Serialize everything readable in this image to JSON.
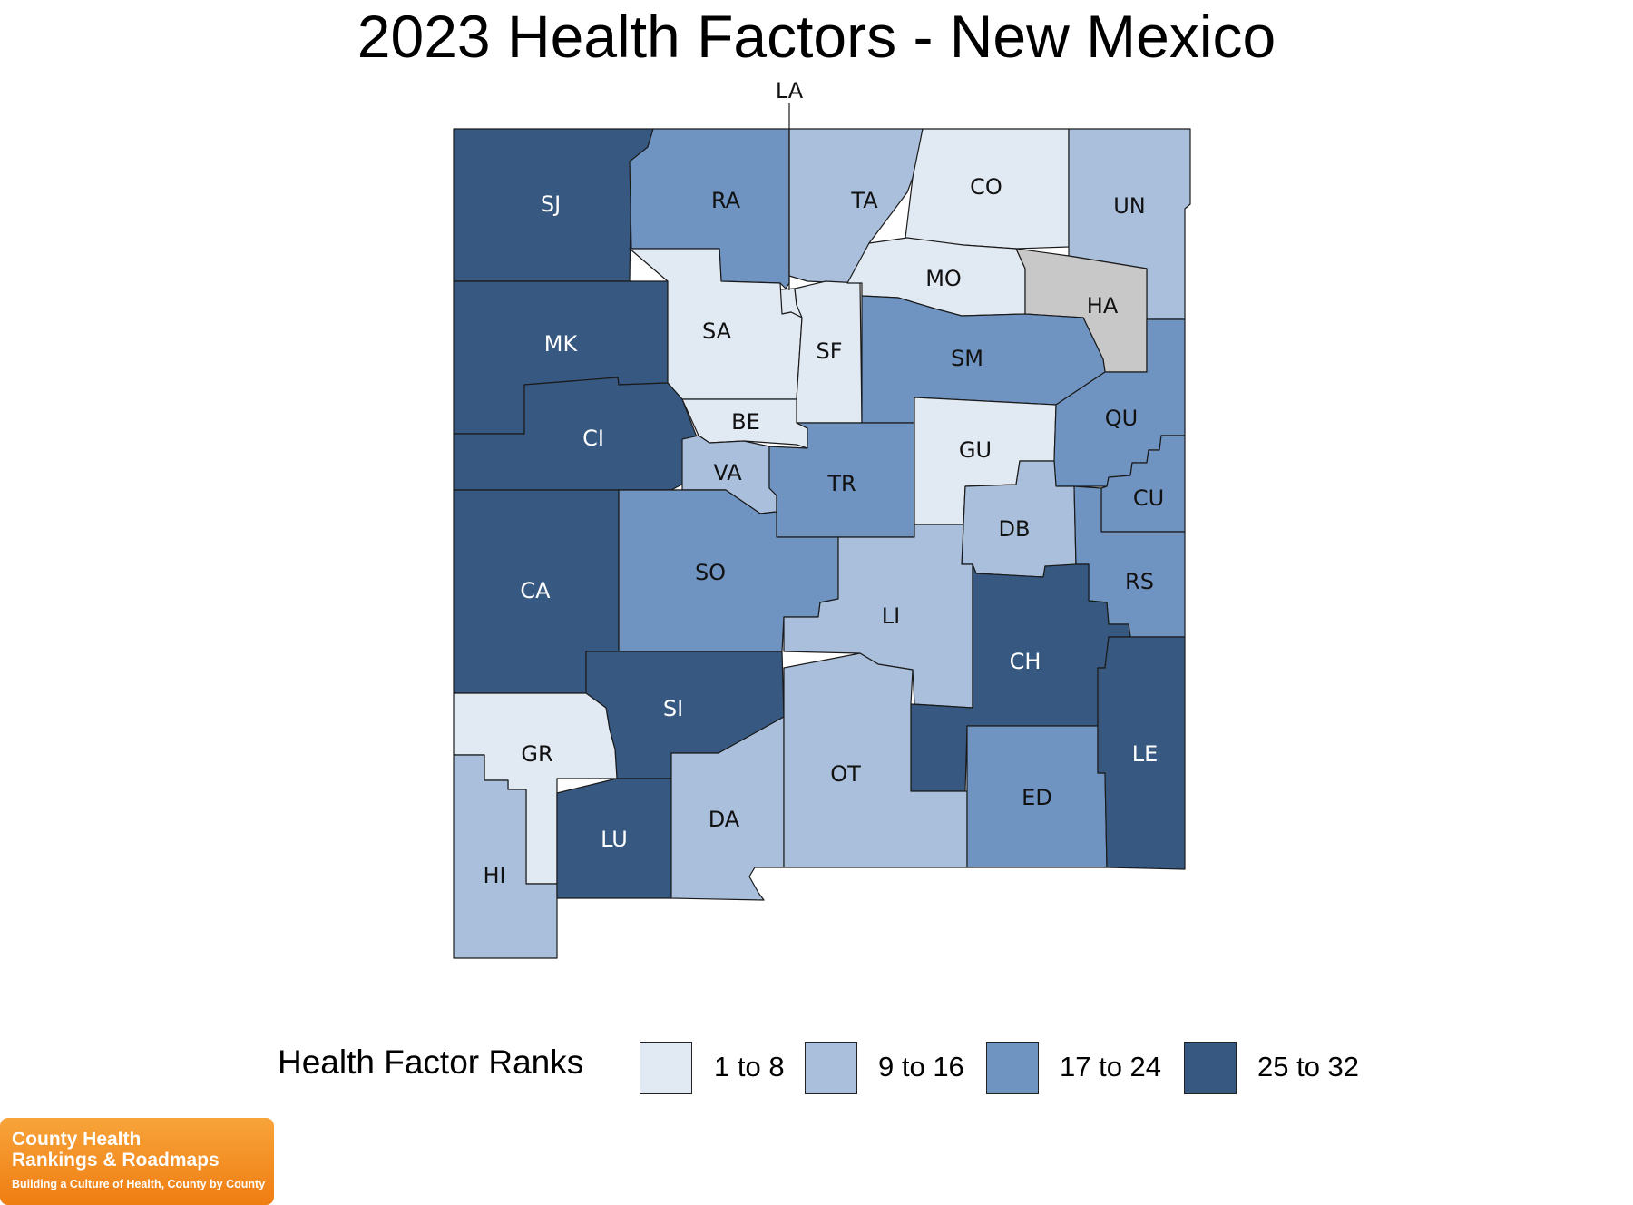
{
  "title": "2023 Health Factors - New Mexico",
  "colors": {
    "1 to 8": "#e1e9f3",
    "9 to 16": "#a9bfdc",
    "17 to 24": "#7094c2",
    "25 to 32": "#375880",
    "no_data": "#c8c8c8"
  },
  "legend": {
    "title": "Health Factor Ranks",
    "items": [
      {
        "label": "1 to 8",
        "range": [
          1,
          8
        ],
        "color": "#e1e9f3"
      },
      {
        "label": "9 to 16",
        "range": [
          9,
          16
        ],
        "color": "#a9bfdc"
      },
      {
        "label": "17 to 24",
        "range": [
          17,
          24
        ],
        "color": "#7094c2"
      },
      {
        "label": "25 to 32",
        "range": [
          25,
          32
        ],
        "color": "#375880"
      }
    ]
  },
  "counties": [
    {
      "abbr": "SJ",
      "rank_range": "25 to 32"
    },
    {
      "abbr": "RA",
      "rank_range": "17 to 24"
    },
    {
      "abbr": "LA",
      "rank_range": "1 to 8"
    },
    {
      "abbr": "TA",
      "rank_range": "9 to 16"
    },
    {
      "abbr": "CO",
      "rank_range": "1 to 8"
    },
    {
      "abbr": "UN",
      "rank_range": "9 to 16"
    },
    {
      "abbr": "MK",
      "rank_range": "25 to 32"
    },
    {
      "abbr": "SA",
      "rank_range": "1 to 8"
    },
    {
      "abbr": "SF",
      "rank_range": "1 to 8"
    },
    {
      "abbr": "MO",
      "rank_range": "1 to 8"
    },
    {
      "abbr": "HA",
      "rank_range": "no data"
    },
    {
      "abbr": "SM",
      "rank_range": "17 to 24"
    },
    {
      "abbr": "CI",
      "rank_range": "25 to 32"
    },
    {
      "abbr": "BE",
      "rank_range": "1 to 8"
    },
    {
      "abbr": "VA",
      "rank_range": "9 to 16"
    },
    {
      "abbr": "TR",
      "rank_range": "17 to 24"
    },
    {
      "abbr": "GU",
      "rank_range": "1 to 8"
    },
    {
      "abbr": "QU",
      "rank_range": "17 to 24"
    },
    {
      "abbr": "CU",
      "rank_range": "17 to 24"
    },
    {
      "abbr": "DB",
      "rank_range": "9 to 16"
    },
    {
      "abbr": "RS",
      "rank_range": "17 to 24"
    },
    {
      "abbr": "CA",
      "rank_range": "25 to 32"
    },
    {
      "abbr": "SO",
      "rank_range": "17 to 24"
    },
    {
      "abbr": "LI",
      "rank_range": "9 to 16"
    },
    {
      "abbr": "CH",
      "rank_range": "25 to 32"
    },
    {
      "abbr": "SI",
      "rank_range": "25 to 32"
    },
    {
      "abbr": "GR",
      "rank_range": "1 to 8"
    },
    {
      "abbr": "HI",
      "rank_range": "9 to 16"
    },
    {
      "abbr": "LU",
      "rank_range": "25 to 32"
    },
    {
      "abbr": "DA",
      "rank_range": "9 to 16"
    },
    {
      "abbr": "OT",
      "rank_range": "9 to 16"
    },
    {
      "abbr": "ED",
      "rank_range": "17 to 24"
    },
    {
      "abbr": "LE",
      "rank_range": "25 to 32"
    }
  ],
  "logo": {
    "line1": "County Health",
    "line2": "Rankings & Roadmaps",
    "tagline": "Building a Culture of Health, County by County"
  }
}
